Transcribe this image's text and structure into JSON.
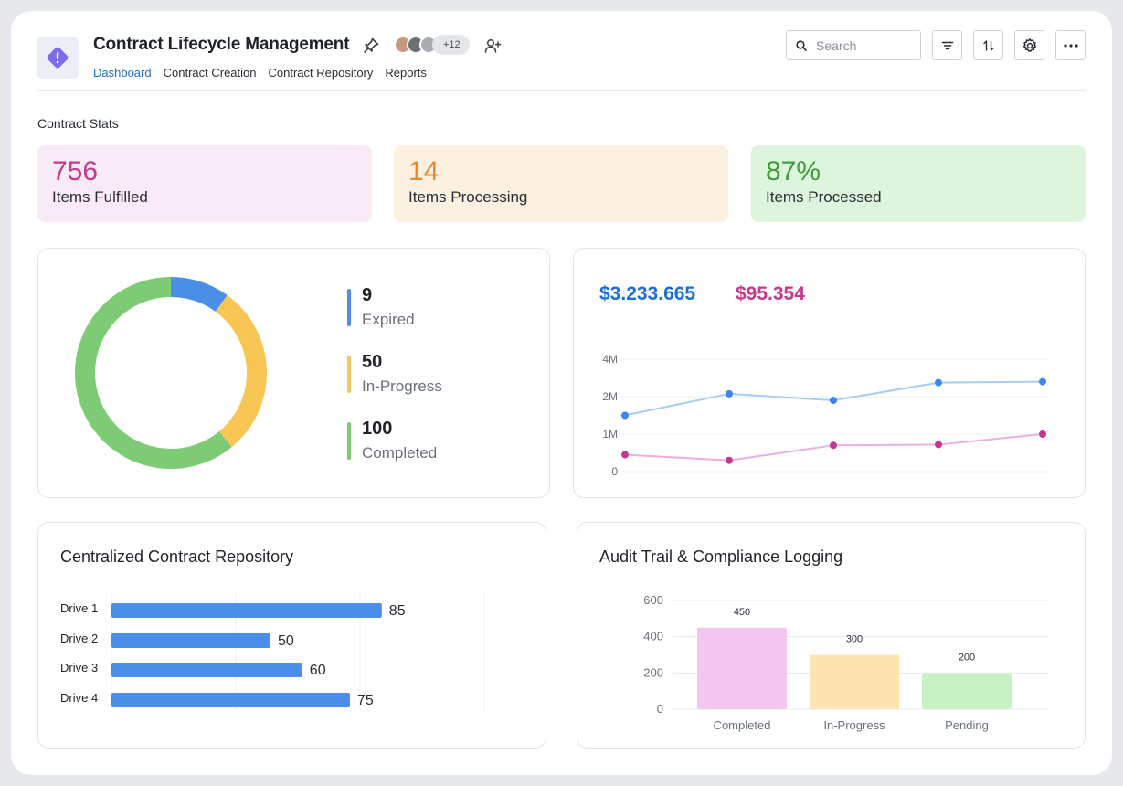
{
  "header": {
    "title": "Contract Lifecycle Management",
    "avatars_more": "+12",
    "tabs": [
      {
        "label": "Dashboard",
        "active": true
      },
      {
        "label": "Contract Creation",
        "active": false
      },
      {
        "label": "Contract Repository",
        "active": false
      },
      {
        "label": "Reports",
        "active": false
      }
    ],
    "search_placeholder": "Search",
    "icons": [
      "alert-diamond-icon",
      "pin-icon",
      "add-user-icon",
      "search-icon",
      "filter-icon",
      "sort-icon",
      "settings-icon",
      "more-icon"
    ]
  },
  "stats": {
    "section_title": "Contract Stats",
    "cards": [
      {
        "value": "756",
        "label": "Items Fulfilled",
        "color": "#c4388f",
        "bg": "#f8ebf6"
      },
      {
        "value": "14",
        "label": "Items Processing",
        "color": "#e58a2e",
        "bg": "#fcf0e1"
      },
      {
        "value": "87%",
        "label": "Items Processed",
        "color": "#3e9a3b",
        "bg": "#def5dd"
      }
    ]
  },
  "status_donut": {
    "items": [
      {
        "value": "9",
        "label": "Expired",
        "color": "#4a8ee8"
      },
      {
        "value": "50",
        "label": "In-Progress",
        "color": "#f8c654"
      },
      {
        "value": "100",
        "label": "Completed",
        "color": "#7dcb74"
      }
    ]
  },
  "line_card": {
    "values": [
      {
        "text": "$3.233.665",
        "color": "#1a6fd6"
      },
      {
        "text": "$95.354",
        "color": "#c4388f"
      }
    ]
  },
  "repository": {
    "title": "Centralized Contract Repository"
  },
  "audit": {
    "title": "Audit Trail & Compliance Logging"
  },
  "chart_data": [
    {
      "type": "pie",
      "variant": "donut",
      "categories": [
        "Expired",
        "In-Progress",
        "Completed"
      ],
      "values": [
        9,
        50,
        100
      ],
      "display_share": [
        0.1,
        0.29,
        0.61
      ],
      "colors": [
        "#4a8ee8",
        "#f8c654",
        "#7dcb74"
      ]
    },
    {
      "type": "line",
      "y_ticks": [
        "0",
        "1M",
        "2M",
        "4M"
      ],
      "series": [
        {
          "values": [
            1.5,
            2.15,
            1.9,
            2.75,
            2.8
          ],
          "color": "#3d86ea"
        },
        {
          "values": [
            0.45,
            0.3,
            0.7,
            0.72,
            1.0
          ],
          "color": "#c4388f"
        }
      ],
      "grid": true
    },
    {
      "type": "bar",
      "orientation": "horizontal",
      "categories": [
        "Drive 1",
        "Drive 2",
        "Drive 3",
        "Drive 4"
      ],
      "values": [
        85,
        50,
        60,
        75
      ],
      "xlim": [
        0,
        120
      ],
      "color": "#4a8ee8"
    },
    {
      "type": "bar",
      "categories": [
        "Completed",
        "In-Progress",
        "Pending"
      ],
      "values": [
        450,
        300,
        200
      ],
      "y_ticks": [
        "0",
        "200",
        "400",
        "600"
      ],
      "ylim": [
        0,
        600
      ],
      "colors": [
        "#f3c6ef",
        "#fde4b0",
        "#c8f2c6"
      ],
      "grid": true
    }
  ]
}
